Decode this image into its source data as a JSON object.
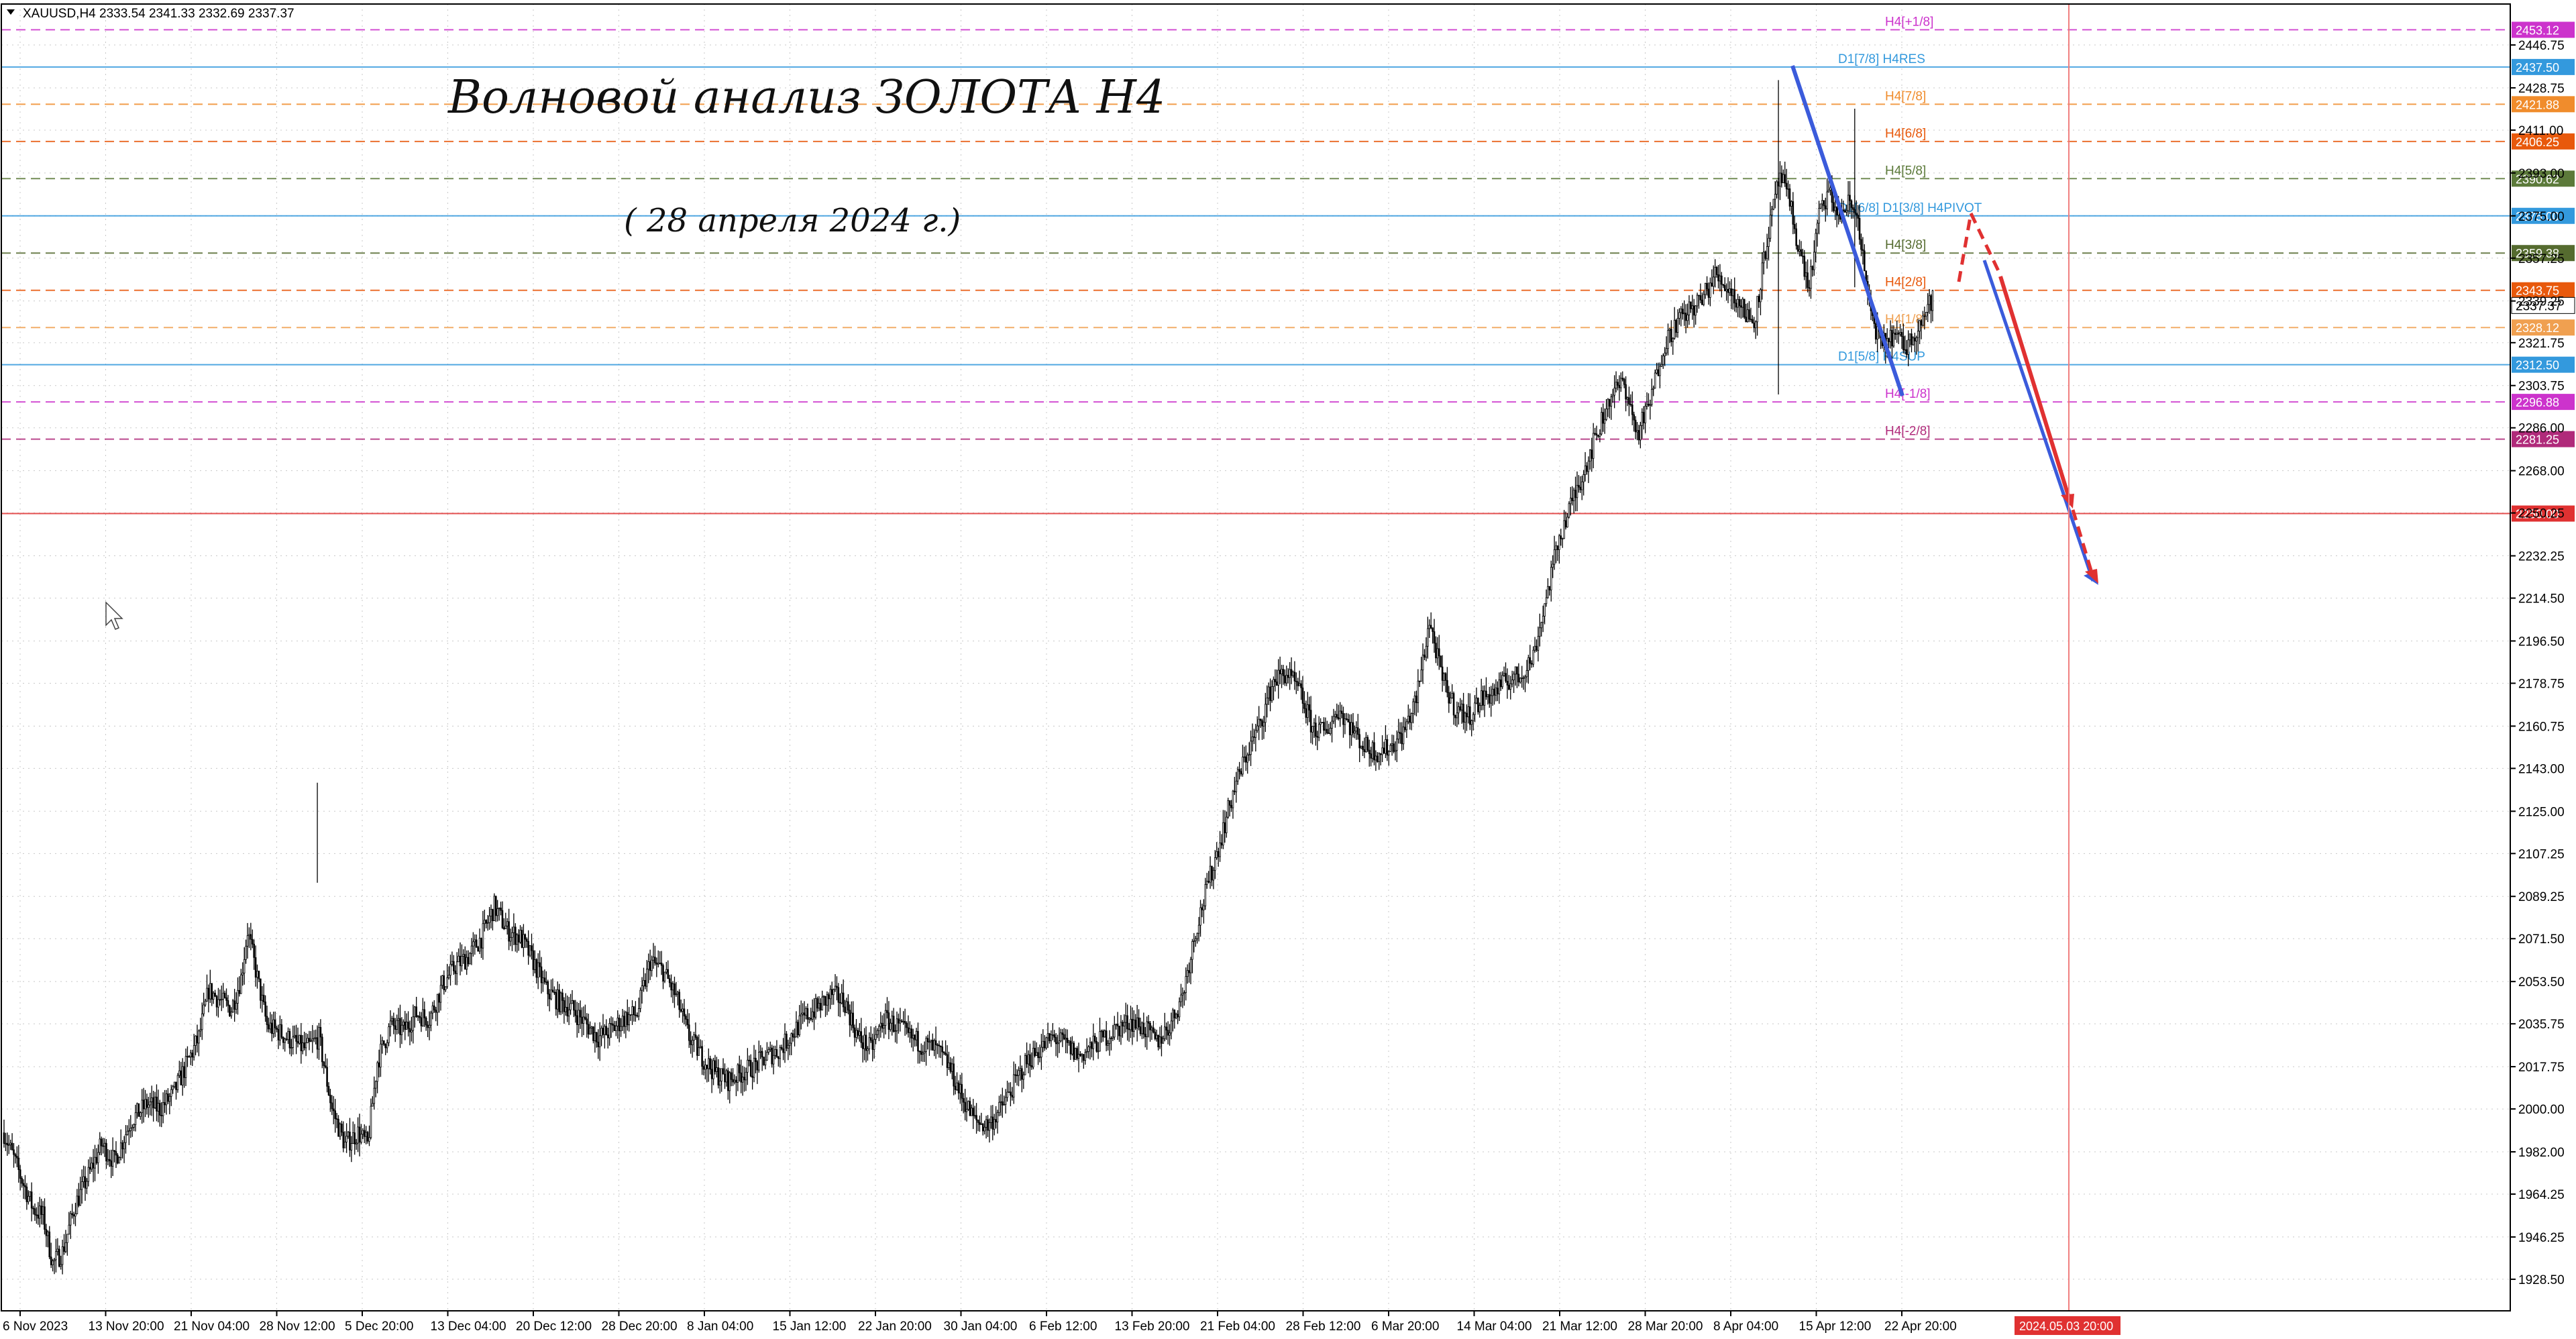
{
  "header": {
    "symbol_text": "XAUUSD,H4  2333.54 2341.33 2332.69 2337.37"
  },
  "annotations": {
    "title": "Волновой анализ ЗОЛОТА H4",
    "subtitle": "( 28 апреля 2024 г.)"
  },
  "colors": {
    "candle": "#000000",
    "grid": "#c8c8c8",
    "forecast_blue": "#3b5bdb",
    "forecast_red": "#e03131",
    "vline": "#f08080"
  },
  "chart_data": {
    "type": "candlestick",
    "symbol": "XAUUSD",
    "timeframe": "H4",
    "ylim": [
      1922,
      2460
    ],
    "price_ticks": [
      "2446.75",
      "2428.75",
      "2411.00",
      "2393.00",
      "2375.00",
      "2357.25",
      "2339.25",
      "2321.75",
      "2303.75",
      "2286.00",
      "2268.00",
      "2250.25",
      "2232.25",
      "2214.50",
      "2196.50",
      "2178.75",
      "2160.75",
      "2143.00",
      "2125.00",
      "2107.25",
      "2089.25",
      "2071.50",
      "2053.50",
      "2035.75",
      "2017.75",
      "2000.00",
      "1982.00",
      "1964.25",
      "1946.25",
      "1928.50"
    ],
    "time_labels": [
      "6 Nov 2023",
      "13 Nov 20:00",
      "21 Nov 04:00",
      "28 Nov 12:00",
      "5 Dec 20:00",
      "13 Dec 04:00",
      "20 Dec 12:00",
      "28 Dec 20:00",
      "8 Jan 04:00",
      "15 Jan 12:00",
      "22 Jan 20:00",
      "30 Jan 04:00",
      "6 Feb 12:00",
      "13 Feb 20:00",
      "21 Feb 04:00",
      "28 Feb 12:00",
      "6 Mar 20:00",
      "14 Mar 04:00",
      "21 Mar 12:00",
      "28 Mar 20:00",
      "8 Apr 04:00",
      "15 Apr 12:00",
      "22 Apr 20:00"
    ],
    "time_marker": "2024.05.03 20:00",
    "levels": [
      {
        "price": 2453.12,
        "label": "H4[+1/8]",
        "color": "#cc33cc",
        "tag": "2453.12"
      },
      {
        "price": 2437.5,
        "label": "D1[7/8] H4RES",
        "color": "#3399dd",
        "tag": "2437.50"
      },
      {
        "price": 2421.88,
        "label": "H4[7/8]",
        "color": "#f08c2c",
        "tag": "2421.88"
      },
      {
        "price": 2406.25,
        "label": "H4[6/8]",
        "color": "#e8590c",
        "tag": "2406.25"
      },
      {
        "price": 2390.62,
        "label": "H4[5/8]",
        "color": "#5c7a3a",
        "tag": "2390.62"
      },
      {
        "price": 2375.0,
        "label": "D1[6/8] D1[3/8] H4PIVOT",
        "color": "#3399dd",
        "tag": "2375.00"
      },
      {
        "price": 2359.38,
        "label": "H4[3/8]",
        "color": "#556b2f",
        "tag": "2359.38"
      },
      {
        "price": 2343.75,
        "label": "H4[2/8]",
        "color": "#e8590c",
        "tag": "2343.75"
      },
      {
        "price": 2328.12,
        "label": "H4[1/8]",
        "color": "#f0a050",
        "tag": "2328.12"
      },
      {
        "price": 2312.5,
        "label": "D1[5/8] H4SUP",
        "color": "#3399dd",
        "tag": "2312.50"
      },
      {
        "price": 2296.88,
        "label": "H4[-1/8]",
        "color": "#cc33cc",
        "tag": "2296.88"
      },
      {
        "price": 2281.25,
        "label": "H4[-2/8]",
        "color": "#b02a7a",
        "tag": "2281.25"
      },
      {
        "price": 2250.0,
        "label": "",
        "color": "#e03131",
        "tag": "2250.00"
      }
    ],
    "last_price": "2337.37",
    "anchors": [
      [
        0,
        1990
      ],
      [
        10,
        1972
      ],
      [
        18,
        1958
      ],
      [
        24,
        1955
      ],
      [
        30,
        1935
      ],
      [
        36,
        1940
      ],
      [
        44,
        1960
      ],
      [
        52,
        1972
      ],
      [
        60,
        1985
      ],
      [
        68,
        1978
      ],
      [
        78,
        1995
      ],
      [
        88,
        2002
      ],
      [
        96,
        2000
      ],
      [
        104,
        2006
      ],
      [
        112,
        2018
      ],
      [
        120,
        2030
      ],
      [
        126,
        2050
      ],
      [
        134,
        2045
      ],
      [
        140,
        2042
      ],
      [
        146,
        2055
      ],
      [
        150,
        2075
      ],
      [
        156,
        2055
      ],
      [
        162,
        2035
      ],
      [
        170,
        2032
      ],
      [
        178,
        2028
      ],
      [
        186,
        2025
      ],
      [
        194,
        2030
      ],
      [
        202,
        2000
      ],
      [
        210,
        1985
      ],
      [
        218,
        1990
      ],
      [
        224,
        1985
      ],
      [
        230,
        2020
      ],
      [
        238,
        2035
      ],
      [
        246,
        2033
      ],
      [
        254,
        2040
      ],
      [
        262,
        2038
      ],
      [
        270,
        2052
      ],
      [
        278,
        2060
      ],
      [
        286,
        2064
      ],
      [
        294,
        2072
      ],
      [
        302,
        2085
      ],
      [
        310,
        2075
      ],
      [
        318,
        2072
      ],
      [
        326,
        2062
      ],
      [
        334,
        2050
      ],
      [
        342,
        2045
      ],
      [
        350,
        2042
      ],
      [
        358,
        2036
      ],
      [
        366,
        2030
      ],
      [
        374,
        2033
      ],
      [
        382,
        2038
      ],
      [
        390,
        2040
      ],
      [
        398,
        2062
      ],
      [
        406,
        2058
      ],
      [
        414,
        2047
      ],
      [
        422,
        2030
      ],
      [
        430,
        2022
      ],
      [
        438,
        2015
      ],
      [
        446,
        2012
      ],
      [
        454,
        2015
      ],
      [
        462,
        2018
      ],
      [
        470,
        2022
      ],
      [
        478,
        2025
      ],
      [
        486,
        2032
      ],
      [
        494,
        2039
      ],
      [
        502,
        2043
      ],
      [
        510,
        2048
      ],
      [
        518,
        2045
      ],
      [
        526,
        2030
      ],
      [
        534,
        2025
      ],
      [
        542,
        2038
      ],
      [
        550,
        2035
      ],
      [
        558,
        2030
      ],
      [
        566,
        2027
      ],
      [
        574,
        2025
      ],
      [
        582,
        2018
      ],
      [
        590,
        2005
      ],
      [
        598,
        1995
      ],
      [
        606,
        1993
      ],
      [
        614,
        2000
      ],
      [
        622,
        2010
      ],
      [
        630,
        2020
      ],
      [
        638,
        2025
      ],
      [
        646,
        2030
      ],
      [
        654,
        2027
      ],
      [
        662,
        2022
      ],
      [
        670,
        2026
      ],
      [
        678,
        2030
      ],
      [
        686,
        2034
      ],
      [
        694,
        2037
      ],
      [
        702,
        2034
      ],
      [
        710,
        2028
      ],
      [
        718,
        2035
      ],
      [
        726,
        2048
      ],
      [
        734,
        2075
      ],
      [
        742,
        2095
      ],
      [
        750,
        2115
      ],
      [
        758,
        2135
      ],
      [
        766,
        2150
      ],
      [
        774,
        2162
      ],
      [
        782,
        2180
      ],
      [
        790,
        2183
      ],
      [
        798,
        2175
      ],
      [
        806,
        2160
      ],
      [
        814,
        2158
      ],
      [
        822,
        2168
      ],
      [
        830,
        2160
      ],
      [
        838,
        2152
      ],
      [
        846,
        2150
      ],
      [
        854,
        2152
      ],
      [
        862,
        2158
      ],
      [
        870,
        2172
      ],
      [
        878,
        2205
      ],
      [
        886,
        2180
      ],
      [
        894,
        2168
      ],
      [
        902,
        2165
      ],
      [
        910,
        2172
      ],
      [
        918,
        2175
      ],
      [
        926,
        2180
      ],
      [
        934,
        2182
      ],
      [
        942,
        2190
      ],
      [
        950,
        2215
      ],
      [
        958,
        2240
      ],
      [
        966,
        2255
      ],
      [
        974,
        2270
      ],
      [
        982,
        2285
      ],
      [
        990,
        2300
      ],
      [
        998,
        2305
      ],
      [
        1006,
        2283
      ],
      [
        1014,
        2297
      ],
      [
        1022,
        2320
      ],
      [
        1030,
        2330
      ],
      [
        1038,
        2335
      ],
      [
        1046,
        2340
      ],
      [
        1054,
        2350
      ],
      [
        1062,
        2345
      ],
      [
        1070,
        2337
      ],
      [
        1078,
        2330
      ],
      [
        1086,
        2365
      ],
      [
        1094,
        2392
      ],
      [
        1100,
        2380
      ],
      [
        1106,
        2360
      ],
      [
        1112,
        2345
      ],
      [
        1118,
        2375
      ],
      [
        1124,
        2385
      ],
      [
        1130,
        2375
      ],
      [
        1136,
        2380
      ],
      [
        1142,
        2375
      ],
      [
        1148,
        2340
      ],
      [
        1156,
        2320
      ],
      [
        1164,
        2325
      ],
      [
        1172,
        2320
      ],
      [
        1180,
        2330
      ],
      [
        1188,
        2340
      ]
    ]
  }
}
